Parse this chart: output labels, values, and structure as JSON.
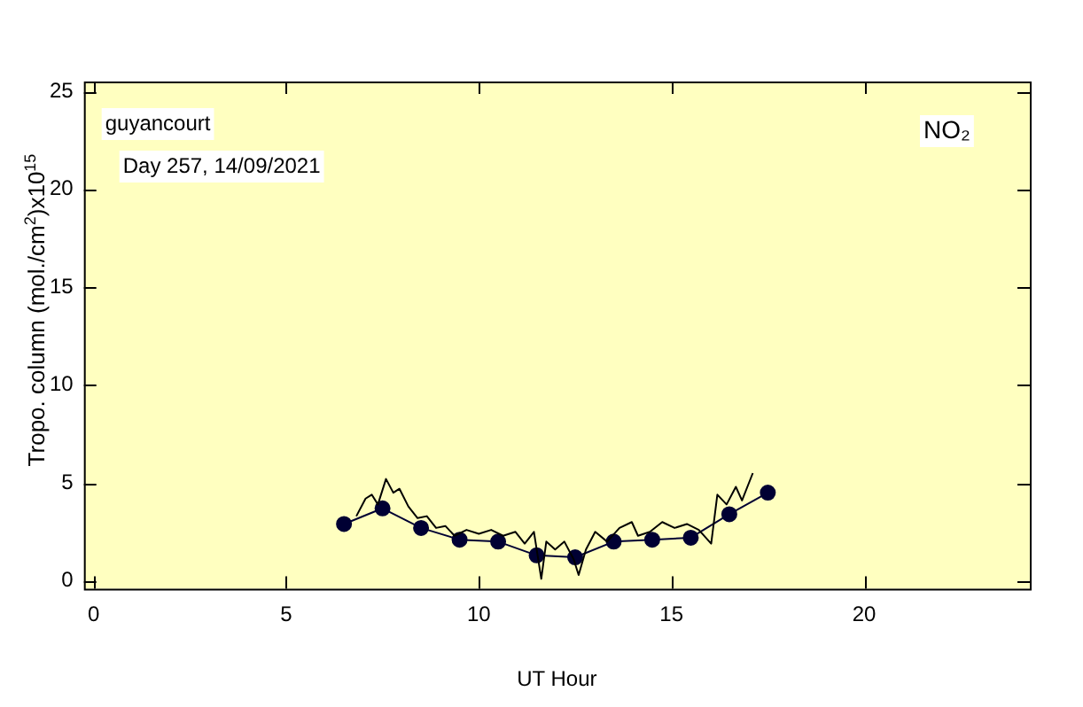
{
  "chart_data": {
    "type": "line",
    "xlabel": "UT Hour",
    "ylabel": "Tropo. column (mol./cm$^{2}$)x10$^{15}$",
    "xlim": [
      -0.25,
      24.3
    ],
    "ylim": [
      -0.4,
      25.5
    ],
    "xticks": [
      0,
      5,
      10,
      15,
      20
    ],
    "yticks": [
      0,
      5,
      10,
      15,
      20,
      25
    ],
    "annotations": [
      "guyancourt",
      "Day 257, 14/09/2021",
      "NO₂"
    ],
    "series": [
      {
        "color": "#000000",
        "marker": "none",
        "x": [
          6.82,
          7.06,
          7.22,
          7.38,
          7.59,
          7.78,
          7.94,
          8.17,
          8.41,
          8.65,
          8.89,
          9.13,
          9.37,
          9.68,
          10.0,
          10.32,
          10.63,
          10.95,
          11.19,
          11.43,
          11.62,
          11.75,
          11.98,
          12.22,
          12.46,
          12.59,
          12.78,
          13.02,
          13.33,
          13.65,
          13.97,
          14.13,
          14.44,
          14.76,
          15.08,
          15.4,
          15.71,
          16.03,
          16.19,
          16.43,
          16.67,
          16.83,
          17.11
        ],
        "values": [
          3.3,
          4.2,
          4.4,
          3.9,
          5.2,
          4.5,
          4.7,
          3.8,
          3.2,
          3.3,
          2.7,
          2.8,
          2.3,
          2.6,
          2.4,
          2.6,
          2.3,
          2.5,
          1.9,
          2.5,
          0.1,
          2.0,
          1.6,
          2.0,
          1.1,
          0.3,
          1.6,
          2.5,
          2.0,
          2.7,
          3.0,
          2.3,
          2.5,
          3.0,
          2.7,
          2.9,
          2.6,
          1.9,
          4.4,
          3.9,
          4.8,
          4.1,
          5.5
        ]
      },
      {
        "color": "#000033",
        "marker": "circle",
        "x": [
          6.5,
          7.5,
          8.5,
          9.5,
          10.5,
          11.5,
          12.5,
          13.5,
          14.5,
          15.5,
          16.5,
          17.5
        ],
        "values": [
          2.9,
          3.7,
          2.7,
          2.1,
          2.0,
          1.3,
          1.2,
          2.0,
          2.1,
          2.2,
          3.4,
          4.5
        ]
      }
    ]
  }
}
